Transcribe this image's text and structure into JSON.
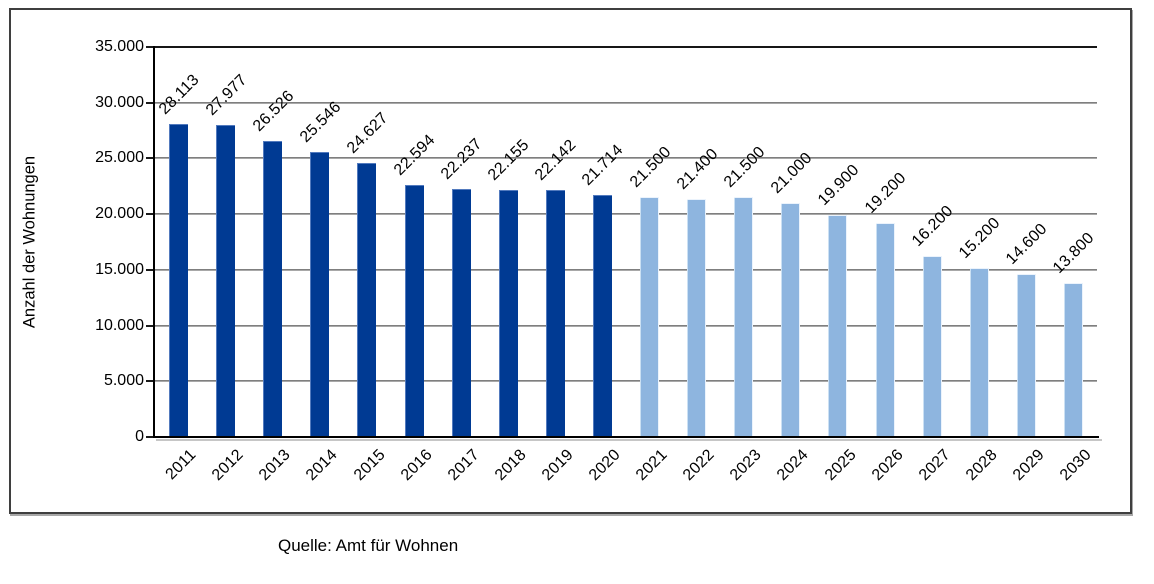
{
  "chart_data": {
    "type": "bar",
    "title": "",
    "xlabel": "",
    "ylabel": "Anzahl der Wohnungen",
    "categories": [
      "2011",
      "2012",
      "2013",
      "2014",
      "2015",
      "2016",
      "2017",
      "2018",
      "2019",
      "2020",
      "2021",
      "2022",
      "2023",
      "2024",
      "2025",
      "2026",
      "2027",
      "2028",
      "2029",
      "2030"
    ],
    "values": [
      28113,
      27977,
      26526,
      25546,
      24627,
      22594,
      22237,
      22155,
      22142,
      21714,
      21500,
      21400,
      21500,
      21000,
      19900,
      19200,
      16200,
      15200,
      14600,
      13800
    ],
    "value_labels": [
      "28.113",
      "27.977",
      "26.526",
      "25.546",
      "24.627",
      "22.594",
      "22.237",
      "22.155",
      "22.142",
      "21.714",
      "21.500",
      "21.400",
      "21.500",
      "21.000",
      "19.900",
      "19.200",
      "16.200",
      "15.200",
      "14.600",
      "13.800"
    ],
    "forecast_start_index": 10,
    "ylim": [
      0,
      35000
    ],
    "ytick_interval": 5000,
    "ytick_values": [
      0,
      5000,
      10000,
      15000,
      20000,
      25000,
      30000,
      35000
    ],
    "ytick_labels": [
      "0",
      "5.000",
      "10.000",
      "15.000",
      "20.000",
      "25.000",
      "30.000",
      "35.000"
    ],
    "grid": "horizontal",
    "legend": "none",
    "bar_label_rotation_deg": -45,
    "x_tick_rotation_deg": -45,
    "colors": {
      "bar_dark": "#003A93",
      "bar_light": "#8EB5DF",
      "gridline": "#7a7a7a",
      "axis": "#000000"
    }
  },
  "source": {
    "text": "Quelle: Amt für Wohnen"
  }
}
